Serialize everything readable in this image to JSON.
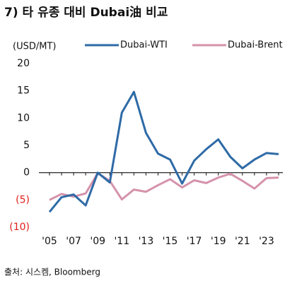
{
  "chart_data": {
    "type": "line",
    "title": "7) 타 유종 대비 Dubai油 비교",
    "y_label": "(USD/MT)",
    "source": "출처: 시스켐, Bloomberg",
    "categories": [
      "'05",
      null,
      "'07",
      null,
      "'09",
      null,
      "'11",
      null,
      "'13",
      null,
      "'15",
      null,
      "'17",
      null,
      "'19",
      null,
      "'21",
      null,
      "'23",
      null
    ],
    "series": [
      {
        "name": "Dubai-WTI",
        "color": "#2e6aa6",
        "values": [
          -7.2,
          -4.5,
          -4,
          -6,
          0,
          -1.8,
          11,
          14.8,
          7.3,
          3.5,
          2.4,
          -2,
          2.2,
          4.3,
          6.1,
          2.9,
          0.8,
          2.4,
          3.6,
          3.4
        ]
      },
      {
        "name": "Dubai-Brent",
        "color": "#d592ab",
        "values": [
          -5,
          -3.9,
          -4.4,
          -3.8,
          -0.1,
          -1.5,
          -4.9,
          -3.1,
          -3.5,
          -2.3,
          -1.2,
          -2.7,
          -1.4,
          -1.9,
          -0.9,
          -0.2,
          -1.5,
          -2.9,
          -1,
          -0.9
        ]
      }
    ],
    "ylim": [
      -10,
      20
    ],
    "yticks": [
      {
        "value": -10,
        "label": "(10)"
      },
      {
        "value": -5,
        "label": "(5)"
      },
      0,
      5,
      10,
      15,
      20
    ],
    "negative_tick_color": "#e0201b",
    "legend": "top"
  }
}
